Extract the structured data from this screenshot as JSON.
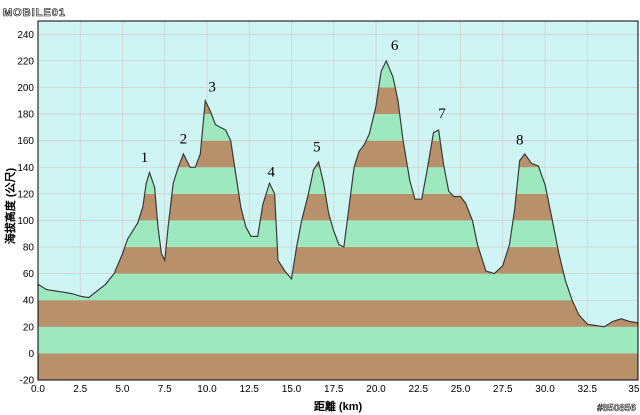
{
  "header": {
    "logo_text": "MOBILE01"
  },
  "footer": {
    "watermark": "#850856"
  },
  "chart_data": {
    "type": "area",
    "title": "",
    "xlabel": "距離 (km)",
    "ylabel": "海拔高度 (公尺)",
    "xlim": [
      0,
      35.5
    ],
    "ylim": [
      -20,
      250
    ],
    "x_ticks": [
      "0.0",
      "2.5",
      "5.0",
      "7.5",
      "10.0",
      "12.5",
      "15.0",
      "17.5",
      "20.0",
      "22.5",
      "25.0",
      "27.5",
      "30.0",
      "32.5",
      "35.5"
    ],
    "y_ticks": [
      "-20",
      "0",
      "20",
      "40",
      "60",
      "80",
      "100",
      "120",
      "140",
      "160",
      "180",
      "200",
      "220",
      "240"
    ],
    "grid": true,
    "band_colors": [
      "#b8916a",
      "#9ee8bf"
    ],
    "background_color": "#cff4f4",
    "line_color": "#3a3a3a",
    "series": [
      {
        "x": [
          0,
          0.5,
          1,
          1.5,
          2,
          2.5,
          3,
          3.5,
          4,
          4.5,
          5,
          5.3,
          5.6,
          5.9,
          6.2,
          6.4,
          6.6,
          6.9,
          7.1,
          7.3,
          7.5,
          7.7,
          8,
          8.3,
          8.6,
          9,
          9.3,
          9.6,
          9.9,
          10.2,
          10.5,
          10.8,
          11.1,
          11.4,
          11.7,
          12,
          12.3,
          12.6,
          13,
          13.3,
          13.7,
          14,
          14.2,
          14.6,
          15,
          15.3,
          15.6,
          16,
          16.3,
          16.6,
          16.9,
          17.2,
          17.5,
          17.8,
          18.1,
          18.4,
          18.7,
          19,
          19.3,
          19.6,
          20,
          20.3,
          20.6,
          21,
          21.3,
          21.6,
          22,
          22.3,
          22.7,
          23,
          23.4,
          23.7,
          24,
          24.3,
          24.6,
          25,
          25.3,
          25.7,
          26,
          26.5,
          27,
          27.5,
          27.9,
          28.2,
          28.5,
          28.8,
          29.2,
          29.6,
          30,
          30.4,
          30.8,
          31.2,
          31.6,
          32,
          32.5,
          33,
          33.5,
          34,
          34.5,
          35,
          35.5
        ],
        "y": [
          52,
          48,
          47,
          46,
          45,
          43,
          42,
          47,
          52,
          60,
          75,
          86,
          92,
          98,
          110,
          128,
          136,
          125,
          95,
          75,
          70,
          95,
          128,
          140,
          150,
          140,
          140,
          150,
          190,
          182,
          172,
          170,
          168,
          160,
          135,
          110,
          95,
          88,
          88,
          112,
          128,
          120,
          70,
          62,
          56,
          80,
          100,
          120,
          138,
          144,
          128,
          105,
          92,
          82,
          80,
          110,
          140,
          152,
          157,
          165,
          186,
          212,
          220,
          208,
          190,
          160,
          130,
          116,
          116,
          136,
          166,
          168,
          142,
          122,
          118,
          118,
          113,
          100,
          82,
          62,
          60,
          66,
          82,
          108,
          145,
          150,
          143,
          141,
          127,
          102,
          76,
          55,
          40,
          29,
          22,
          21,
          20,
          24,
          26,
          24,
          23
        ]
      }
    ],
    "annotations": [
      {
        "text": "1",
        "x": 6.3,
        "y": 138
      },
      {
        "text": "2",
        "x": 8.6,
        "y": 152
      },
      {
        "text": "3",
        "x": 10.3,
        "y": 191
      },
      {
        "text": "4",
        "x": 13.8,
        "y": 127
      },
      {
        "text": "5",
        "x": 16.5,
        "y": 146
      },
      {
        "text": "6",
        "x": 21.1,
        "y": 222
      },
      {
        "text": "7",
        "x": 23.9,
        "y": 171
      },
      {
        "text": "8",
        "x": 28.5,
        "y": 151
      }
    ]
  }
}
